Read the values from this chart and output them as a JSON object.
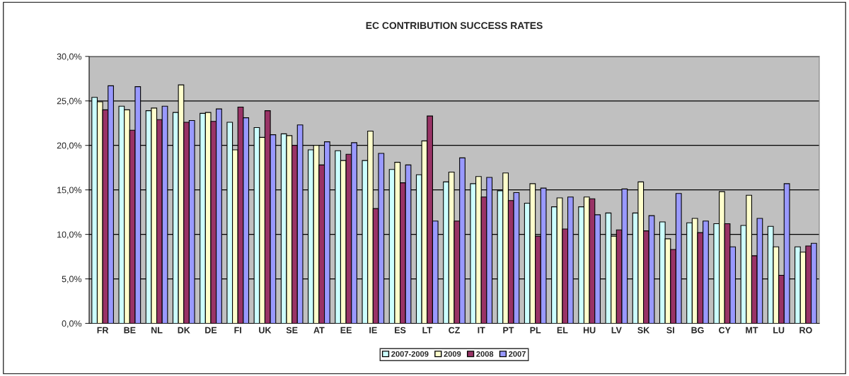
{
  "chart_data": {
    "type": "bar",
    "title": "EC CONTRIBUTION SUCCESS RATES",
    "categories": [
      "FR",
      "BE",
      "NL",
      "DK",
      "DE",
      "FI",
      "UK",
      "SE",
      "AT",
      "EE",
      "IE",
      "ES",
      "LT",
      "CZ",
      "IT",
      "PT",
      "PL",
      "EL",
      "HU",
      "LV",
      "SK",
      "SI",
      "BG",
      "CY",
      "MT",
      "LU",
      "RO"
    ],
    "series": [
      {
        "name": "2007-2009",
        "color": "#ccffff",
        "values": [
          25.4,
          24.4,
          23.9,
          23.7,
          23.6,
          22.6,
          22.0,
          21.3,
          19.5,
          19.4,
          18.3,
          17.3,
          16.7,
          15.9,
          15.7,
          14.9,
          13.5,
          13.1,
          13.1,
          12.4,
          12.4,
          11.4,
          11.3,
          11.2,
          11.0,
          10.9,
          8.6
        ]
      },
      {
        "name": "2009",
        "color": "#ffffcc",
        "values": [
          24.9,
          24.0,
          24.2,
          26.8,
          23.7,
          19.5,
          20.9,
          21.1,
          20.0,
          18.3,
          21.6,
          18.1,
          20.5,
          17.0,
          16.5,
          16.9,
          15.7,
          14.1,
          14.2,
          9.8,
          15.9,
          9.5,
          11.8,
          14.8,
          14.4,
          8.6,
          8.0
        ]
      },
      {
        "name": "2008",
        "color": "#993366",
        "values": [
          24.0,
          21.7,
          22.9,
          22.6,
          22.7,
          24.3,
          23.9,
          20.0,
          17.8,
          19.0,
          12.9,
          15.8,
          23.3,
          11.5,
          14.2,
          13.8,
          9.8,
          10.6,
          14.0,
          10.5,
          10.4,
          8.3,
          10.2,
          11.2,
          7.6,
          5.4,
          8.7
        ]
      },
      {
        "name": "2007",
        "color": "#9999ff",
        "values": [
          26.7,
          26.6,
          24.4,
          22.8,
          24.1,
          23.1,
          21.2,
          22.3,
          20.4,
          20.3,
          19.1,
          17.8,
          11.5,
          18.6,
          16.4,
          14.7,
          15.2,
          14.2,
          12.2,
          15.1,
          12.1,
          14.6,
          11.5,
          8.6,
          11.8,
          15.7,
          9.0
        ]
      }
    ],
    "ylim": [
      0,
      30
    ],
    "yticks": [
      {
        "value": 0,
        "label": "0,0%"
      },
      {
        "value": 5,
        "label": "5,0%"
      },
      {
        "value": 10,
        "label": "10,0%"
      },
      {
        "value": 15,
        "label": "15,0%"
      },
      {
        "value": 20,
        "label": "20,0%"
      },
      {
        "value": 25,
        "label": "25,0%"
      },
      {
        "value": 30,
        "label": "30,0%"
      }
    ],
    "grid": "y",
    "legend": "bottom"
  }
}
